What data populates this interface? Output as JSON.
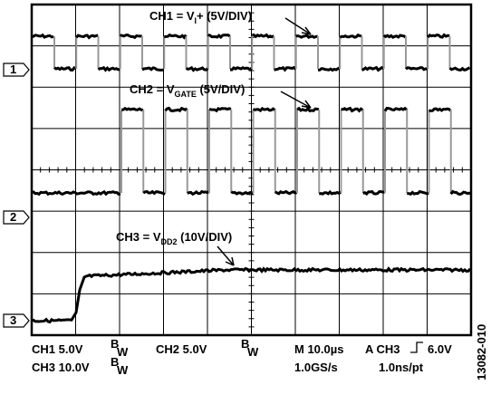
{
  "annotations": [
    {
      "prefix": "CH1 = V",
      "sub": "I",
      "suffix": "+ (5V/DIV)"
    },
    {
      "prefix": "CH2 = V",
      "sub": "GATE",
      "suffix": " (5V/DIV)"
    },
    {
      "prefix": "CH3 = V",
      "sub": "DD2",
      "suffix": " (10V/DIV)"
    }
  ],
  "markers": [
    "1",
    "2",
    "3"
  ],
  "status": {
    "ch1": "CH1 5.0V",
    "ch2": "CH2  5.0V",
    "ch3": "CH3 10.0V",
    "bw": {
      "sup": "B",
      "sub": "W"
    },
    "timebase": "M 10.0µs",
    "rate": "1.0GS/s",
    "trigger_prefix": "A  CH3",
    "trigger_level": "6.0V",
    "resolution": "1.0ns/pt"
  },
  "figure_id": "13082-010"
}
